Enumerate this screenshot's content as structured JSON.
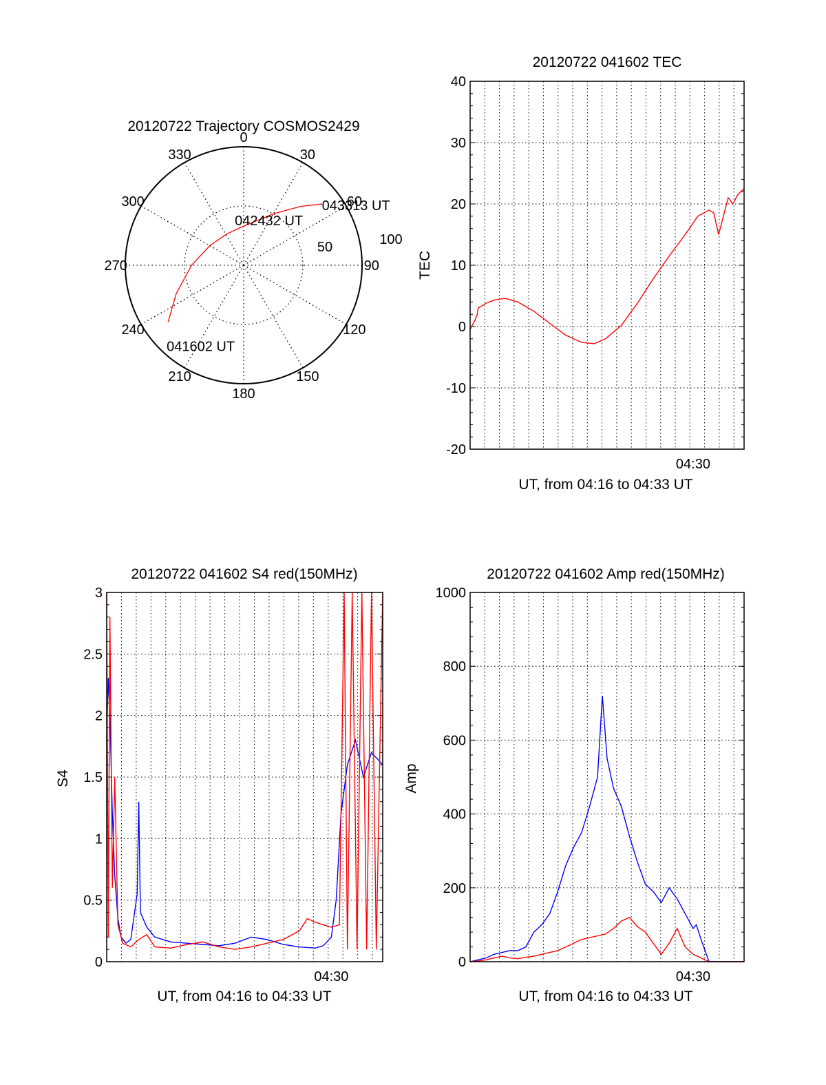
{
  "colors": {
    "red": "#ff0000",
    "blue": "#0000ff",
    "axis": "#000000",
    "grid": "#000000"
  },
  "chart_data": [
    {
      "id": "trajectory",
      "type": "polar",
      "title": "20120722 Trajectory COSMOS2429",
      "azimuth_labels": [
        "0",
        "30",
        "60",
        "90",
        "120",
        "150",
        "180",
        "210",
        "240",
        "270",
        "300",
        "330"
      ],
      "radial_labels": [
        "50",
        "100"
      ],
      "radial_max": 100,
      "track_points": [
        [
          233,
          80
        ],
        [
          247,
          62
        ],
        [
          270,
          44
        ],
        [
          300,
          33
        ],
        [
          332,
          30
        ],
        [
          0,
          33
        ],
        [
          30,
          50
        ],
        [
          44,
          69
        ],
        [
          52,
          84
        ]
      ],
      "annotations": [
        {
          "text": "043313 UT",
          "az": 54,
          "r": 86
        },
        {
          "text": "042432 UT",
          "az": 354,
          "r": 38
        },
        {
          "text": "041602 UT",
          "az": 222,
          "r": 92
        }
      ]
    },
    {
      "id": "tec",
      "type": "line",
      "title": "20120722 041602 TEC",
      "ylabel": "TEC",
      "xlabel": "UT, from 04:16 to 04:33 UT",
      "x_tick_label": "04:30",
      "x_tick_value": 14.0,
      "xlim": [
        0,
        17.2
      ],
      "ylim": [
        -20,
        40
      ],
      "y_ticks": [
        -20,
        -10,
        0,
        10,
        20,
        30,
        40
      ],
      "grid_x_step": 0.92,
      "series": [
        {
          "color": "red",
          "x": [
            0.0,
            0.15,
            0.3,
            0.45,
            0.5,
            1.0,
            1.5,
            2.2,
            3.0,
            4.0,
            5.0,
            6.0,
            7.0,
            7.8,
            8.5,
            9.5,
            10.5,
            11.5,
            12.5,
            13.5,
            14.3,
            15.0,
            15.3,
            15.6,
            15.9,
            16.2,
            16.5,
            16.8,
            17.2
          ],
          "y": [
            -0.5,
            0.3,
            1.0,
            2.0,
            3.0,
            3.8,
            4.3,
            4.6,
            4.0,
            2.5,
            0.5,
            -1.4,
            -2.6,
            -2.8,
            -2.0,
            0.2,
            3.8,
            7.8,
            11.5,
            15.0,
            18.0,
            19.0,
            18.5,
            15.0,
            18.0,
            21.0,
            20.0,
            21.5,
            22.5
          ]
        }
      ]
    },
    {
      "id": "s4",
      "type": "line",
      "title": "20120722 041602 S4 red(150MHz)",
      "ylabel": "S4",
      "xlabel": "UT, from 04:16 to 04:33 UT",
      "x_tick_label": "04:30",
      "x_tick_value": 14.0,
      "xlim": [
        0,
        17.2
      ],
      "ylim": [
        0,
        3
      ],
      "y_ticks": [
        0,
        0.5,
        1,
        1.5,
        2,
        2.5,
        3
      ],
      "y_tick_labels": [
        "0",
        "0.5",
        "1",
        "1.5",
        "2",
        "2.5",
        "3"
      ],
      "grid_x_step": 0.92,
      "series": [
        {
          "color": "blue",
          "x": [
            0.0,
            0.1,
            0.2,
            0.35,
            0.5,
            0.7,
            0.9,
            1.2,
            1.5,
            1.9,
            2.0,
            2.1,
            2.5,
            3.0,
            4.0,
            5.0,
            6.0,
            7.0,
            8.0,
            9.0,
            10.0,
            11.0,
            12.0,
            13.0,
            13.5,
            14.0,
            14.3,
            14.6,
            15.0,
            15.5,
            16.0,
            16.5,
            17.2
          ],
          "y": [
            1.8,
            2.3,
            2.0,
            1.2,
            0.7,
            0.35,
            0.2,
            0.15,
            0.18,
            0.55,
            1.3,
            0.4,
            0.28,
            0.2,
            0.16,
            0.15,
            0.14,
            0.13,
            0.15,
            0.2,
            0.18,
            0.14,
            0.12,
            0.11,
            0.13,
            0.2,
            0.5,
            1.2,
            1.6,
            1.8,
            1.5,
            1.7,
            1.6
          ]
        },
        {
          "color": "red",
          "x": [
            0.0,
            0.1,
            0.2,
            0.35,
            0.5,
            0.7,
            1.0,
            1.5,
            2.0,
            2.5,
            3.0,
            4.0,
            5.0,
            6.0,
            7.0,
            8.0,
            9.0,
            10.0,
            11.0,
            12.0,
            12.5,
            13.0,
            13.5,
            14.0,
            14.5,
            14.8,
            15.0,
            15.3,
            15.6,
            15.9,
            16.2,
            16.5,
            16.8,
            17.2
          ],
          "y": [
            3.0,
            0.2,
            2.8,
            0.6,
            1.5,
            0.3,
            0.15,
            0.12,
            0.18,
            0.22,
            0.12,
            0.11,
            0.14,
            0.16,
            0.12,
            0.1,
            0.12,
            0.15,
            0.18,
            0.25,
            0.35,
            0.32,
            0.3,
            0.28,
            0.3,
            3.0,
            0.1,
            3.0,
            0.1,
            3.0,
            0.1,
            3.0,
            0.1,
            3.0
          ]
        }
      ]
    },
    {
      "id": "amp",
      "type": "line",
      "title": "20120722 041602 Amp red(150MHz)",
      "ylabel": "Amp",
      "xlabel": "UT, from 04:16 to 04:33 UT",
      "x_tick_label": "04:30",
      "x_tick_value": 14.0,
      "xlim": [
        0,
        17.2
      ],
      "ylim": [
        0,
        1000
      ],
      "y_ticks": [
        0,
        200,
        400,
        600,
        800,
        1000
      ],
      "grid_x_step": 0.92,
      "series": [
        {
          "color": "blue",
          "x": [
            0.0,
            0.5,
            1.0,
            1.5,
            2.0,
            2.5,
            3.0,
            3.5,
            4.0,
            4.5,
            5.0,
            5.5,
            6.0,
            6.5,
            7.0,
            7.5,
            8.0,
            8.3,
            8.6,
            9.0,
            9.5,
            10.0,
            10.5,
            11.0,
            11.5,
            12.0,
            12.5,
            13.0,
            13.5,
            14.0,
            14.2,
            14.5,
            15.0,
            15.5,
            17.2
          ],
          "y": [
            0,
            5,
            10,
            20,
            25,
            30,
            30,
            40,
            80,
            100,
            130,
            190,
            260,
            310,
            350,
            420,
            500,
            720,
            550,
            470,
            420,
            340,
            270,
            210,
            190,
            160,
            200,
            170,
            130,
            90,
            100,
            60,
            0,
            0,
            0
          ]
        },
        {
          "color": "red",
          "x": [
            0.0,
            0.5,
            1.0,
            1.5,
            2.0,
            2.5,
            3.0,
            3.5,
            4.0,
            4.5,
            5.0,
            5.5,
            6.0,
            6.5,
            7.0,
            7.5,
            8.0,
            8.5,
            9.0,
            9.5,
            10.0,
            10.5,
            11.0,
            11.5,
            12.0,
            12.5,
            13.0,
            13.5,
            14.0,
            14.5,
            15.0,
            15.5,
            17.2
          ],
          "y": [
            0,
            2,
            5,
            10,
            15,
            10,
            8,
            12,
            15,
            20,
            25,
            30,
            40,
            50,
            60,
            65,
            70,
            75,
            90,
            110,
            120,
            95,
            80,
            50,
            20,
            50,
            90,
            40,
            20,
            10,
            0,
            0,
            0
          ]
        }
      ]
    }
  ]
}
